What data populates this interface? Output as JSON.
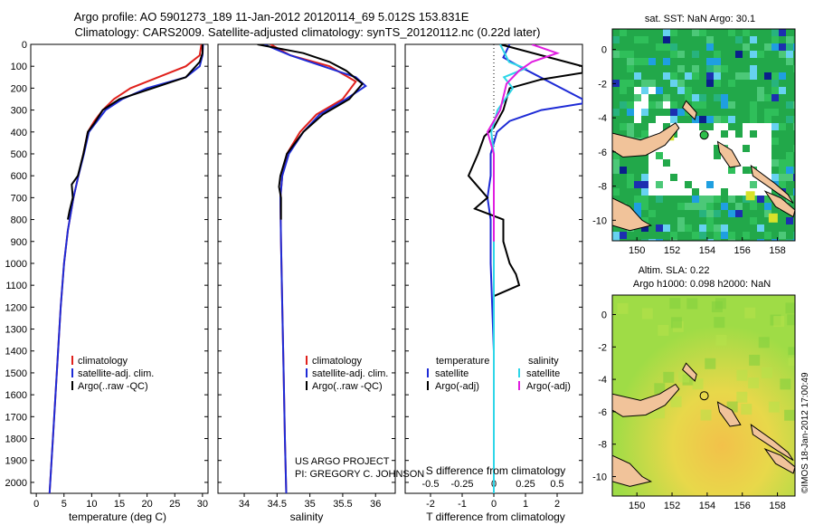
{
  "header": {
    "line1": "Argo profile: AO 5901273_189 11-Jan-2012 20120114_69 5.012S 153.831E",
    "line2": "Climatology: CARS2009. Satellite-adjusted climatology: synTS_20120112.nc (0.22d later)"
  },
  "colors": {
    "climatology": "#e0211c",
    "satellite": "#1e2bd6",
    "argo": "#000000",
    "sal_satellite": "#2fd6e8",
    "sal_argo": "#e01ee0"
  },
  "chart_data": [
    {
      "id": "temperature",
      "type": "line",
      "xlabel": "temperature (deg C)",
      "xlim": [
        -1,
        31
      ],
      "ylim": [
        0,
        2050
      ],
      "xticks": [
        0,
        5,
        10,
        15,
        20,
        25,
        30
      ],
      "yticks": [
        0,
        100,
        200,
        300,
        400,
        500,
        600,
        700,
        800,
        900,
        1000,
        1100,
        1200,
        1300,
        1400,
        1500,
        1600,
        1700,
        1800,
        1900,
        2000
      ],
      "legend": [
        "climatology",
        "satellite-adj. clim.",
        "Argo(..raw -QC)"
      ],
      "series": [
        {
          "name": "climatology",
          "color": "#e0211c",
          "points": [
            [
              29.8,
              0
            ],
            [
              29.5,
              50
            ],
            [
              27,
              100
            ],
            [
              22,
              150
            ],
            [
              17,
              200
            ],
            [
              14,
              250
            ],
            [
              12,
              300
            ],
            [
              10.5,
              350
            ],
            [
              9.3,
              400
            ],
            [
              8.5,
              500
            ],
            [
              7.6,
              600
            ],
            [
              6.7,
              700
            ],
            [
              5.7,
              850
            ],
            [
              5,
              1000
            ],
            [
              4.4,
              1200
            ],
            [
              3.7,
              1500
            ],
            [
              3,
              1800
            ],
            [
              2.4,
              2050
            ]
          ]
        },
        {
          "name": "satellite-adj. clim.",
          "color": "#1e2bd6",
          "points": [
            [
              30.1,
              0
            ],
            [
              30,
              50
            ],
            [
              29.5,
              100
            ],
            [
              27,
              150
            ],
            [
              20,
              200
            ],
            [
              15.5,
              250
            ],
            [
              12.5,
              300
            ],
            [
              11,
              350
            ],
            [
              9.5,
              400
            ],
            [
              8.6,
              500
            ],
            [
              7.6,
              600
            ],
            [
              6.7,
              700
            ],
            [
              5.7,
              850
            ],
            [
              5,
              1000
            ],
            [
              4.4,
              1200
            ],
            [
              3.7,
              1500
            ],
            [
              3,
              1800
            ],
            [
              2.4,
              2050
            ]
          ]
        },
        {
          "name": "Argo(..raw -QC)",
          "color": "#000000",
          "points": [
            [
              30,
              0
            ],
            [
              30,
              40
            ],
            [
              29.5,
              80
            ],
            [
              27,
              150
            ],
            [
              21,
              200
            ],
            [
              15,
              250
            ],
            [
              12,
              300
            ],
            [
              10.5,
              360
            ],
            [
              9.3,
              400
            ],
            [
              8.5,
              500
            ],
            [
              7.5,
              600
            ],
            [
              6.4,
              640
            ],
            [
              6.6,
              700
            ],
            [
              6,
              760
            ],
            [
              5.7,
              800
            ]
          ]
        }
      ]
    },
    {
      "id": "salinity",
      "type": "line",
      "xlabel": "salinity",
      "xlim": [
        33.6,
        36.3
      ],
      "ylim": [
        0,
        2050
      ],
      "xticks": [
        34,
        34.5,
        35,
        35.5,
        36
      ],
      "legend": [
        "climatology",
        "satellite-adj. clim.",
        "Argo(..raw -QC)"
      ],
      "annotation": [
        "US ARGO PROJECT",
        "PI: GREGORY C. JOHNSON"
      ],
      "series": [
        {
          "name": "climatology",
          "color": "#e0211c",
          "points": [
            [
              34.4,
              0
            ],
            [
              34.7,
              50
            ],
            [
              35.3,
              100
            ],
            [
              35.7,
              170
            ],
            [
              35.5,
              250
            ],
            [
              35.1,
              320
            ],
            [
              34.85,
              400
            ],
            [
              34.65,
              500
            ],
            [
              34.58,
              600
            ],
            [
              34.55,
              700
            ],
            [
              34.56,
              900
            ],
            [
              34.58,
              1200
            ],
            [
              34.6,
              1500
            ],
            [
              34.62,
              1800
            ],
            [
              34.64,
              2050
            ]
          ]
        },
        {
          "name": "satellite-adj. clim.",
          "color": "#1e2bd6",
          "points": [
            [
              34.3,
              0
            ],
            [
              34.7,
              50
            ],
            [
              35.2,
              100
            ],
            [
              35.7,
              150
            ],
            [
              35.85,
              190
            ],
            [
              35.55,
              250
            ],
            [
              35.15,
              320
            ],
            [
              34.9,
              400
            ],
            [
              34.68,
              500
            ],
            [
              34.58,
              600
            ],
            [
              34.55,
              700
            ],
            [
              34.56,
              900
            ],
            [
              34.58,
              1200
            ],
            [
              34.6,
              1500
            ],
            [
              34.62,
              1800
            ],
            [
              34.64,
              2050
            ]
          ]
        },
        {
          "name": "Argo(..raw -QC)",
          "color": "#000000",
          "points": [
            [
              34.2,
              0
            ],
            [
              34.9,
              40
            ],
            [
              35.3,
              80
            ],
            [
              35.55,
              120
            ],
            [
              35.8,
              180
            ],
            [
              35.6,
              250
            ],
            [
              35.2,
              320
            ],
            [
              34.9,
              400
            ],
            [
              34.65,
              500
            ],
            [
              34.55,
              600
            ],
            [
              34.53,
              650
            ],
            [
              34.56,
              700
            ],
            [
              34.56,
              800
            ]
          ]
        }
      ]
    },
    {
      "id": "differences",
      "type": "line",
      "xlabel": "T difference from climatology",
      "xlabel_top": "S difference from climatology",
      "xlim": [
        -2.8,
        2.8
      ],
      "ylim": [
        0,
        2050
      ],
      "xticks": [
        -2,
        -1,
        0,
        1,
        2
      ],
      "xticks_top": [
        -0.5,
        -0.25,
        0,
        0.25,
        0.5
      ],
      "legend_headers": [
        "temperature",
        "salinity"
      ],
      "legend": [
        "satellite",
        "Argo(-adj)",
        "satellite",
        "Argo(-adj)"
      ],
      "series": [
        {
          "name": "temperature satellite",
          "color": "#1e2bd6",
          "points": [
            [
              0.5,
              0
            ],
            [
              0.3,
              60
            ],
            [
              0.8,
              100
            ],
            [
              2.8,
              250
            ],
            [
              2.8,
              270
            ],
            [
              1.5,
              300
            ],
            [
              0.5,
              350
            ],
            [
              0.1,
              400
            ],
            [
              -0.1,
              500
            ],
            [
              -0.1,
              600
            ],
            [
              -0.2,
              700
            ],
            [
              -0.1,
              800
            ],
            [
              -0.1,
              1000
            ],
            [
              0,
              1400
            ],
            [
              0,
              2050
            ]
          ]
        },
        {
          "name": "temperature Argo(-adj)",
          "color": "#000000",
          "points": [
            [
              0.2,
              0
            ],
            [
              1.5,
              50
            ],
            [
              2.8,
              100
            ],
            [
              2.8,
              130
            ],
            [
              1.5,
              160
            ],
            [
              0.5,
              200
            ],
            [
              0.3,
              300
            ],
            [
              0,
              380
            ],
            [
              -0.3,
              420
            ],
            [
              -0.5,
              500
            ],
            [
              -0.8,
              600
            ],
            [
              -0.5,
              650
            ],
            [
              -0.2,
              700
            ],
            [
              -0.6,
              750
            ],
            [
              0.3,
              800
            ],
            [
              0.3,
              900
            ],
            [
              0.5,
              1000
            ],
            [
              0.7,
              1050
            ],
            [
              0.8,
              1100
            ],
            [
              0,
              1150
            ],
            [
              0,
              1200
            ]
          ]
        },
        {
          "name": "salinity satellite",
          "color": "#2fd6e8",
          "points": [
            [
              0.05,
              0
            ],
            [
              0.12,
              80
            ],
            [
              0.25,
              110
            ],
            [
              0.08,
              150
            ],
            [
              0.15,
              200
            ],
            [
              0.03,
              300
            ],
            [
              -0.02,
              400
            ],
            [
              0,
              500
            ],
            [
              0,
              700
            ],
            [
              0,
              1000
            ],
            [
              0,
              2050
            ]
          ]
        },
        {
          "name": "salinity Argo(-adj)",
          "color": "#e01ee0",
          "points": [
            [
              0.3,
              0
            ],
            [
              0.5,
              40
            ],
            [
              0.3,
              80
            ],
            [
              0.2,
              120
            ],
            [
              0.1,
              180
            ],
            [
              0.05,
              300
            ],
            [
              -0.05,
              400
            ],
            [
              0,
              500
            ],
            [
              0,
              700
            ],
            [
              0,
              900
            ]
          ]
        }
      ]
    }
  ],
  "maps": {
    "sst_title": "sat. SST: NaN Argo: 30.1",
    "sla_title1": "Altim. SLA: 0.22",
    "sla_title2": "Argo h1000: 0.098 h2000: NaN",
    "xticks": [
      150,
      152,
      154,
      156,
      158
    ],
    "yticks": [
      0,
      -2,
      -4,
      -6,
      -8,
      -10
    ],
    "lon_range": [
      148.6,
      159
    ],
    "lat_range": [
      -11.2,
      1.2
    ],
    "argo_position": [
      153.831,
      -5.012
    ]
  },
  "credit": "©IMOS 18-Jan-2012 17:00:49"
}
